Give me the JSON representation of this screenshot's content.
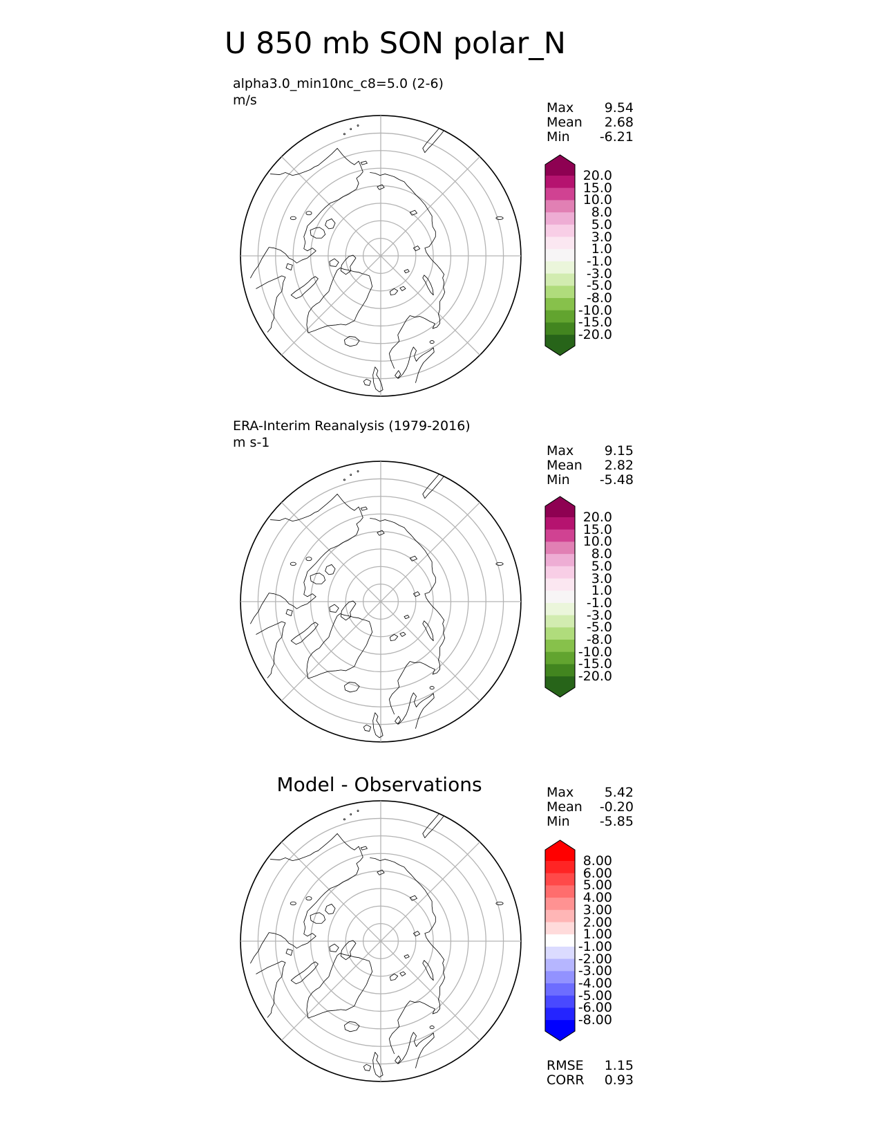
{
  "title": "U 850 mb SON polar_N",
  "panels": [
    {
      "id": "model",
      "label_line1": "alpha3.0_min10nc_c8=5.0 (2-6)",
      "label_line2": "m/s",
      "stats_labels": {
        "max": "Max",
        "mean": "Mean",
        "min": "Min"
      },
      "stats": {
        "max": "9.54",
        "mean": "2.68",
        "min": "-6.21"
      },
      "colorbar": {
        "ticks": [
          "20.0",
          "15.0",
          "10.0",
          "8.0",
          "5.0",
          "3.0",
          "1.0",
          "-1.0",
          "-3.0",
          "-5.0",
          "-8.0",
          "-10.0",
          "-15.0",
          "-20.0"
        ],
        "band_colors": [
          "#b5136f",
          "#d04292",
          "#e180b4",
          "#eeadd4",
          "#f8cee6",
          "#fbe7f1",
          "#f7f5f6",
          "#ebf6db",
          "#d2ecb0",
          "#b0dc7c",
          "#87c14b",
          "#62a42f",
          "#42851f"
        ],
        "over": "#8e0152",
        "under": "#276419"
      }
    },
    {
      "id": "obs",
      "label_line1": "ERA-Interim Reanalysis (1979-2016)",
      "label_line2": "m s-1",
      "stats_labels": {
        "max": "Max",
        "mean": "Mean",
        "min": "Min"
      },
      "stats": {
        "max": "9.15",
        "mean": "2.82",
        "min": "-5.48"
      },
      "colorbar": {
        "ticks": [
          "20.0",
          "15.0",
          "10.0",
          "8.0",
          "5.0",
          "3.0",
          "1.0",
          "-1.0",
          "-3.0",
          "-5.0",
          "-8.0",
          "-10.0",
          "-15.0",
          "-20.0"
        ],
        "band_colors": [
          "#b5136f",
          "#d04292",
          "#e180b4",
          "#eeadd4",
          "#f8cee6",
          "#fbe7f1",
          "#f7f5f6",
          "#ebf6db",
          "#d2ecb0",
          "#b0dc7c",
          "#87c14b",
          "#62a42f",
          "#42851f"
        ],
        "over": "#8e0152",
        "under": "#276419"
      }
    },
    {
      "id": "diff",
      "panel_title": "Model - Observations",
      "stats_labels": {
        "max": "Max",
        "mean": "Mean",
        "min": "Min"
      },
      "stats": {
        "max": "5.42",
        "mean": "-0.20",
        "min": "-5.85"
      },
      "extra_stats_labels": {
        "rmse": "RMSE",
        "corr": "CORR"
      },
      "extra_stats": {
        "rmse": "1.15",
        "corr": "0.93"
      },
      "colorbar": {
        "ticks": [
          "8.00",
          "6.00",
          "5.00",
          "4.00",
          "3.00",
          "2.00",
          "1.00",
          "-1.00",
          "-2.00",
          "-3.00",
          "-4.00",
          "-5.00",
          "-6.00",
          "-8.00"
        ],
        "band_colors": [
          "#ff2424",
          "#ff4949",
          "#ff6d6d",
          "#ff9292",
          "#ffb6b6",
          "#ffdbdb",
          "#ffffff",
          "#dbdbff",
          "#b6b6ff",
          "#9292ff",
          "#6d6dff",
          "#4949ff",
          "#2424ff"
        ],
        "over": "#ff0000",
        "under": "#0000ff"
      }
    }
  ],
  "chart_data": [
    {
      "type": "heatmap",
      "subtype": "north-polar-stereographic-map",
      "title": "alpha3.0_min10nc_c8=5.0 (2-6)",
      "units": "m/s",
      "stats": {
        "max": 9.54,
        "mean": 2.68,
        "min": -6.21
      },
      "colorbar_levels": [
        -20.0,
        -15.0,
        -10.0,
        -8.0,
        -5.0,
        -3.0,
        -1.0,
        1.0,
        3.0,
        5.0,
        8.0,
        10.0,
        15.0,
        20.0
      ],
      "colormap": "pink-white-green (PiYG reversed, high=magenta)",
      "map_fill": "none (coastline outlines only)",
      "graticule": {
        "latitude_circles": 8,
        "longitude_spokes_deg": 45
      }
    },
    {
      "type": "heatmap",
      "subtype": "north-polar-stereographic-map",
      "title": "ERA-Interim Reanalysis (1979-2016)",
      "units": "m s-1",
      "stats": {
        "max": 9.15,
        "mean": 2.82,
        "min": -5.48
      },
      "colorbar_levels": [
        -20.0,
        -15.0,
        -10.0,
        -8.0,
        -5.0,
        -3.0,
        -1.0,
        1.0,
        3.0,
        5.0,
        8.0,
        10.0,
        15.0,
        20.0
      ],
      "colormap": "pink-white-green (PiYG reversed, high=magenta)",
      "map_fill": "none (coastline outlines only)",
      "graticule": {
        "latitude_circles": 8,
        "longitude_spokes_deg": 45
      }
    },
    {
      "type": "heatmap",
      "subtype": "north-polar-stereographic-map",
      "title": "Model - Observations",
      "stats": {
        "max": 5.42,
        "mean": -0.2,
        "min": -5.85
      },
      "rmse": 1.15,
      "corr": 0.93,
      "colorbar_levels": [
        -8.0,
        -6.0,
        -5.0,
        -4.0,
        -3.0,
        -2.0,
        -1.0,
        1.0,
        2.0,
        3.0,
        4.0,
        5.0,
        6.0,
        8.0
      ],
      "colormap": "blue-white-red (high=red)",
      "map_fill": "none (coastline outlines only)",
      "graticule": {
        "latitude_circles": 8,
        "longitude_spokes_deg": 45
      }
    }
  ]
}
